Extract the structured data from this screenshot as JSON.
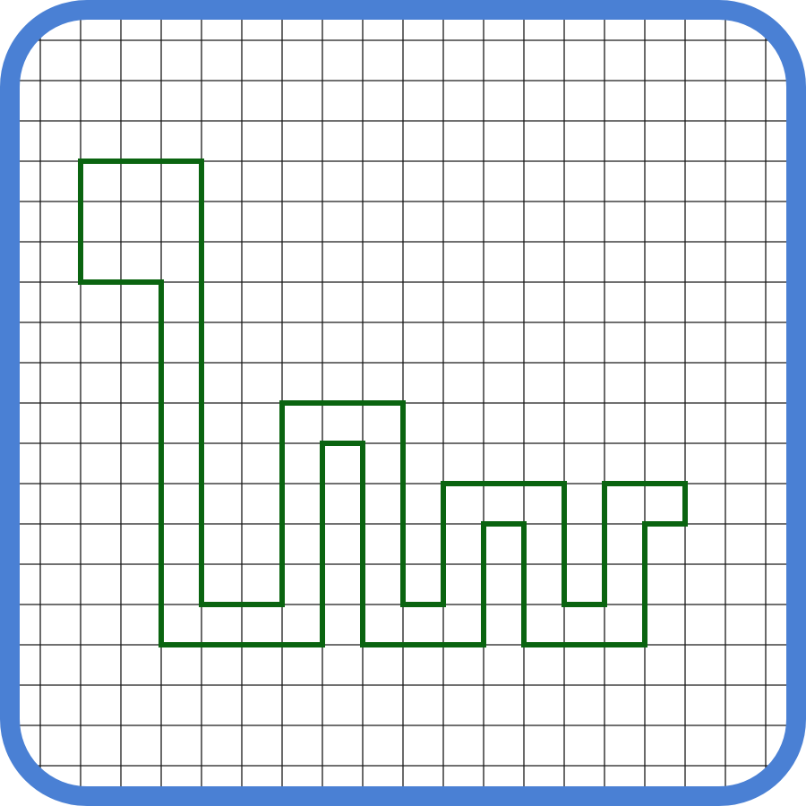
{
  "diagram": {
    "type": "grid-polyline",
    "grid": {
      "cell_count_x": 19,
      "cell_count_y": 19,
      "line_color": "#1a1a1a",
      "background_color": "#ffffff"
    },
    "frame": {
      "border_color": "#4a80d4",
      "fill_color": "#ffffff"
    },
    "shape": {
      "stroke_color": "#0a6410",
      "closed": true,
      "vertices": [
        [
          2,
          4
        ],
        [
          5,
          4
        ],
        [
          5,
          15
        ],
        [
          7,
          15
        ],
        [
          7,
          10
        ],
        [
          10,
          10
        ],
        [
          10,
          15
        ],
        [
          11,
          15
        ],
        [
          11,
          12
        ],
        [
          14,
          12
        ],
        [
          14,
          15
        ],
        [
          15,
          15
        ],
        [
          15,
          12
        ],
        [
          17,
          12
        ],
        [
          17,
          13
        ],
        [
          16,
          13
        ],
        [
          16,
          16
        ],
        [
          13,
          16
        ],
        [
          13,
          13
        ],
        [
          12,
          13
        ],
        [
          12,
          16
        ],
        [
          9,
          16
        ],
        [
          9,
          11
        ],
        [
          8,
          11
        ],
        [
          8,
          16
        ],
        [
          4,
          16
        ],
        [
          4,
          7
        ],
        [
          2,
          7
        ]
      ]
    }
  }
}
